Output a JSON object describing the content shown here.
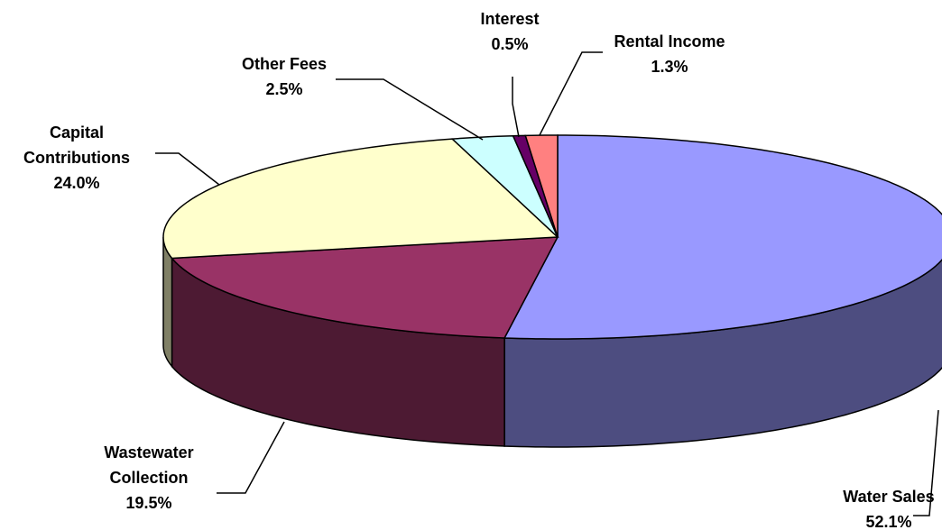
{
  "chart_data": {
    "type": "pie3d",
    "categories": [
      "Water Sales",
      "Wastewater Collection",
      "Capital Contributions",
      "Other Fees",
      "Interest",
      "Rental Income"
    ],
    "values": [
      52.1,
      19.5,
      24.0,
      2.5,
      0.5,
      1.3
    ],
    "value_labels": [
      "52.1%",
      "19.5%",
      "24.0%",
      "2.5%",
      "0.5%",
      "1.3%"
    ],
    "colors": [
      "#9999ff",
      "#993366",
      "#ffffcc",
      "#ccffff",
      "#660066",
      "#ff8080"
    ]
  }
}
